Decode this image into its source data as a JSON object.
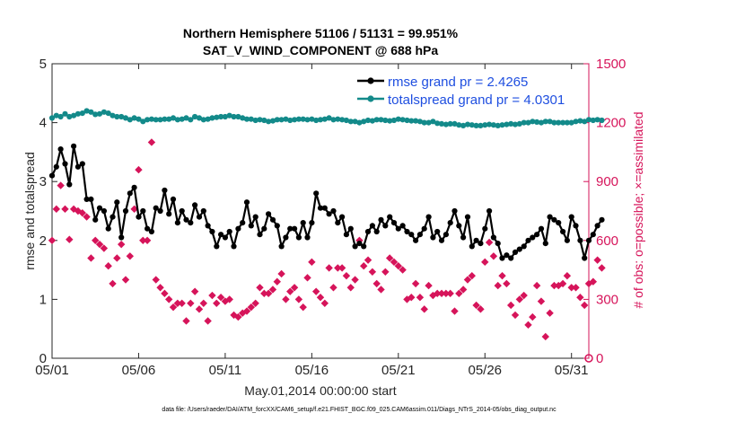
{
  "chart_data": {
    "type": "line",
    "title": "Northern Hemisphere 51106 / 51131 = 99.951%",
    "subtitle": "SAT_V_WIND_COMPONENT @ 688 hPa",
    "xlabel": "May.01,2014 00:00:00 start",
    "ylabel": "rmse and totalspread",
    "y2label": "# of obs: o=possible; ×=assimilated",
    "footnote": "data file: /Users/raeder/DAI/ATM_forcXX/CAM6_setup/f.e21.FHIST_BGC.f09_025.CAM6assim.011/Diags_NTrS_2014-05/obs_diag_output.nc",
    "xlim": [
      0,
      31
    ],
    "ylim": [
      0,
      5
    ],
    "y2lim": [
      0,
      1500
    ],
    "xticks": [
      0,
      5,
      10,
      15,
      20,
      25,
      30
    ],
    "xtick_labels": [
      "05/01",
      "05/06",
      "05/11",
      "05/16",
      "05/21",
      "05/26",
      "05/31"
    ],
    "yticks": [
      0,
      1,
      2,
      3,
      4,
      5
    ],
    "ytick_labels": [
      "0",
      "1",
      "2",
      "3",
      "4",
      "5"
    ],
    "y2ticks": [
      0,
      300,
      600,
      900,
      1200,
      1500
    ],
    "y2tick_labels": [
      "0",
      "300",
      "600",
      "900",
      "1200",
      "1500"
    ],
    "legend_position": "top-right",
    "colors": {
      "rmse": "#000000",
      "spread": "#138a8a",
      "obs": "#d6145a"
    },
    "series": [
      {
        "name": "rmse grand pr = 2.4265",
        "axis": "left",
        "x_start": 0,
        "x_step": 0.25,
        "values": [
          3.1,
          3.25,
          3.55,
          3.3,
          2.95,
          3.6,
          3.25,
          3.3,
          2.7,
          2.7,
          2.35,
          2.55,
          2.5,
          2.2,
          2.4,
          2.65,
          2.05,
          2.5,
          2.8,
          2.9,
          2.4,
          2.5,
          2.2,
          2.15,
          2.55,
          2.5,
          2.85,
          2.45,
          2.7,
          2.3,
          2.5,
          2.35,
          2.3,
          2.6,
          2.4,
          2.5,
          2.25,
          2.15,
          1.9,
          2.1,
          2.05,
          2.15,
          1.9,
          2.2,
          2.3,
          2.65,
          2.25,
          2.4,
          2.1,
          2.2,
          2.45,
          2.35,
          2.25,
          1.9,
          2.05,
          2.2,
          2.2,
          2.05,
          2.3,
          2.05,
          2.3,
          2.8,
          2.55,
          2.55,
          2.45,
          2.5,
          2.3,
          2.4,
          2.1,
          2.2,
          1.9,
          1.95,
          1.9,
          2.15,
          2.25,
          2.15,
          2.35,
          2.25,
          2.4,
          2.3,
          2.2,
          2.25,
          2.15,
          2.1,
          2.0,
          2.1,
          2.2,
          2.4,
          2.05,
          2.15,
          2.0,
          2.1,
          2.3,
          2.5,
          2.25,
          2.05,
          2.4,
          1.9,
          2.0,
          1.95,
          2.2,
          2.5,
          2.05,
          1.95,
          1.7,
          1.75,
          1.7,
          1.8,
          1.85,
          1.9,
          2.0,
          2.05,
          2.1,
          2.2,
          1.95,
          2.4,
          2.35,
          2.3,
          2.15,
          2.0,
          2.4,
          2.25,
          2.0,
          1.7,
          2.0,
          2.1,
          2.25,
          2.35
        ]
      },
      {
        "name": "totalspread grand pr = 4.0301",
        "axis": "left",
        "x_start": 0,
        "x_step": 0.25,
        "values": [
          4.08,
          4.12,
          4.1,
          4.15,
          4.1,
          4.12,
          4.15,
          4.16,
          4.2,
          4.18,
          4.14,
          4.15,
          4.18,
          4.16,
          4.12,
          4.1,
          4.1,
          4.08,
          4.05,
          4.08,
          4.06,
          4.02,
          4.05,
          4.06,
          4.05,
          4.05,
          4.06,
          4.06,
          4.08,
          4.05,
          4.06,
          4.08,
          4.05,
          4.1,
          4.08,
          4.05,
          4.06,
          4.08,
          4.09,
          4.1,
          4.1,
          4.12,
          4.1,
          4.1,
          4.08,
          4.06,
          4.06,
          4.04,
          4.05,
          4.04,
          4.02,
          4.03,
          4.05,
          4.05,
          4.06,
          4.04,
          4.05,
          4.06,
          4.06,
          4.05,
          4.06,
          4.04,
          4.05,
          4.06,
          4.08,
          4.05,
          4.06,
          4.05,
          4.04,
          4.02,
          4.02,
          4.0,
          4.02,
          4.04,
          4.03,
          4.05,
          4.05,
          4.04,
          4.03,
          4.04,
          4.06,
          4.05,
          4.04,
          4.03,
          4.03,
          4.02,
          4.0,
          4.0,
          4.02,
          3.99,
          3.98,
          3.97,
          3.98,
          3.98,
          3.96,
          3.95,
          3.97,
          3.96,
          3.95,
          3.95,
          3.96,
          3.97,
          3.96,
          3.95,
          3.96,
          3.97,
          3.98,
          3.97,
          3.98,
          4.0,
          4.0,
          4.02,
          4.01,
          4.0,
          4.02,
          4.02,
          4.0,
          4.0,
          4.0,
          4.0,
          4.0,
          4.02,
          4.03,
          4.02,
          4.05,
          4.04,
          4.05,
          4.04
        ]
      },
      {
        "name": "# of obs assimilated",
        "axis": "right",
        "marker": "diamond",
        "points": [
          [
            0.0,
            600
          ],
          [
            0.25,
            760
          ],
          [
            0.5,
            880
          ],
          [
            0.75,
            760
          ],
          [
            1.0,
            605
          ],
          [
            1.25,
            760
          ],
          [
            1.5,
            750
          ],
          [
            1.75,
            740
          ],
          [
            2.0,
            720
          ],
          [
            2.25,
            510
          ],
          [
            2.5,
            600
          ],
          [
            2.75,
            580
          ],
          [
            3.0,
            560
          ],
          [
            3.25,
            470
          ],
          [
            3.5,
            380
          ],
          [
            3.75,
            510
          ],
          [
            4.0,
            580
          ],
          [
            4.25,
            400
          ],
          [
            4.5,
            520
          ],
          [
            4.75,
            760
          ],
          [
            5.0,
            960
          ],
          [
            5.25,
            600
          ],
          [
            5.5,
            600
          ],
          [
            5.75,
            1100
          ],
          [
            6.0,
            400
          ],
          [
            6.25,
            360
          ],
          [
            6.5,
            330
          ],
          [
            6.75,
            300
          ],
          [
            7.0,
            260
          ],
          [
            7.25,
            280
          ],
          [
            7.5,
            280
          ],
          [
            7.75,
            190
          ],
          [
            8.0,
            280
          ],
          [
            8.25,
            340
          ],
          [
            8.5,
            250
          ],
          [
            8.75,
            280
          ],
          [
            9.0,
            190
          ],
          [
            9.25,
            320
          ],
          [
            9.5,
            280
          ],
          [
            9.75,
            310
          ],
          [
            10.0,
            290
          ],
          [
            10.25,
            300
          ],
          [
            10.5,
            220
          ],
          [
            10.75,
            210
          ],
          [
            11.0,
            230
          ],
          [
            11.25,
            240
          ],
          [
            11.5,
            260
          ],
          [
            11.75,
            280
          ],
          [
            12.0,
            360
          ],
          [
            12.25,
            330
          ],
          [
            12.5,
            330
          ],
          [
            12.75,
            350
          ],
          [
            13.0,
            390
          ],
          [
            13.25,
            430
          ],
          [
            13.5,
            300
          ],
          [
            13.75,
            340
          ],
          [
            14.0,
            360
          ],
          [
            14.25,
            300
          ],
          [
            14.5,
            260
          ],
          [
            14.75,
            410
          ],
          [
            15.0,
            490
          ],
          [
            15.25,
            340
          ],
          [
            15.5,
            310
          ],
          [
            15.75,
            280
          ],
          [
            16.0,
            460
          ],
          [
            16.25,
            360
          ],
          [
            16.5,
            460
          ],
          [
            16.75,
            460
          ],
          [
            17.0,
            420
          ],
          [
            17.25,
            360
          ],
          [
            17.5,
            400
          ],
          [
            17.75,
            600
          ],
          [
            18.0,
            470
          ],
          [
            18.25,
            500
          ],
          [
            18.5,
            440
          ],
          [
            18.75,
            380
          ],
          [
            19.0,
            350
          ],
          [
            19.25,
            440
          ],
          [
            19.5,
            510
          ],
          [
            19.75,
            490
          ],
          [
            20.0,
            470
          ],
          [
            20.25,
            450
          ],
          [
            20.5,
            300
          ],
          [
            20.75,
            310
          ],
          [
            21.0,
            380
          ],
          [
            21.25,
            310
          ],
          [
            21.5,
            250
          ],
          [
            21.75,
            370
          ],
          [
            22.0,
            320
          ],
          [
            22.25,
            330
          ],
          [
            22.5,
            330
          ],
          [
            22.75,
            330
          ],
          [
            23.0,
            330
          ],
          [
            23.25,
            240
          ],
          [
            23.5,
            330
          ],
          [
            23.75,
            350
          ],
          [
            24.0,
            400
          ],
          [
            24.25,
            420
          ],
          [
            24.5,
            270
          ],
          [
            24.75,
            250
          ],
          [
            25.0,
            490
          ],
          [
            25.25,
            590
          ],
          [
            25.5,
            520
          ],
          [
            25.75,
            370
          ],
          [
            26.0,
            420
          ],
          [
            26.25,
            380
          ],
          [
            26.5,
            270
          ],
          [
            26.75,
            220
          ],
          [
            27.0,
            300
          ],
          [
            27.25,
            320
          ],
          [
            27.5,
            170
          ],
          [
            27.75,
            210
          ],
          [
            28.0,
            370
          ],
          [
            28.25,
            290
          ],
          [
            28.5,
            110
          ],
          [
            28.75,
            230
          ],
          [
            29.0,
            370
          ],
          [
            29.25,
            370
          ],
          [
            29.5,
            380
          ],
          [
            29.75,
            420
          ],
          [
            30.0,
            360
          ],
          [
            30.25,
            360
          ],
          [
            30.5,
            310
          ],
          [
            30.75,
            270
          ],
          [
            31.0,
            380
          ],
          [
            31.25,
            390
          ],
          [
            31.5,
            500
          ],
          [
            31.75,
            460
          ]
        ]
      }
    ]
  }
}
